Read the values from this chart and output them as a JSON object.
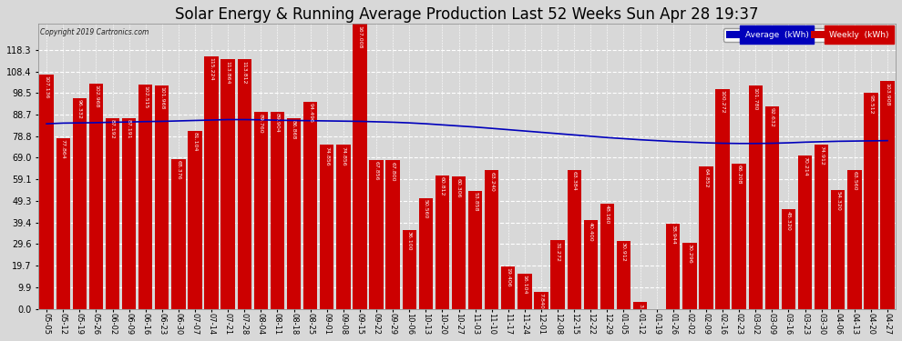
{
  "title": "Solar Energy & Running Average Production Last 52 Weeks Sun Apr 28 19:37",
  "copyright": "Copyright 2019 Cartronics.com",
  "categories": [
    "05-05",
    "05-12",
    "05-19",
    "05-26",
    "06-02",
    "06-09",
    "06-16",
    "06-23",
    "06-30",
    "07-07",
    "07-14",
    "07-21",
    "07-28",
    "08-04",
    "08-11",
    "08-18",
    "08-25",
    "09-01",
    "09-08",
    "09-15",
    "09-22",
    "09-29",
    "10-06",
    "10-13",
    "10-20",
    "10-27",
    "11-03",
    "11-10",
    "11-17",
    "11-24",
    "12-01",
    "12-08",
    "12-15",
    "12-22",
    "12-29",
    "01-05",
    "01-12",
    "01-19",
    "01-26",
    "02-02",
    "02-09",
    "02-16",
    "02-23",
    "03-02",
    "03-09",
    "03-16",
    "03-23",
    "03-30",
    "04-06",
    "04-13",
    "04-20",
    "04-27"
  ],
  "weekly_values": [
    107.136,
    77.864,
    96.332,
    102.968,
    87.192,
    87.191,
    102.515,
    101.968,
    68.376,
    81.104,
    115.224,
    113.864,
    113.812,
    89.76,
    89.904,
    86.868,
    94.496,
    74.856,
    74.856,
    167.008,
    67.856,
    67.8,
    36.1,
    50.56,
    60.812,
    60.306,
    53.858,
    63.24,
    19.406,
    16.104,
    7.84,
    31.272,
    63.384,
    40.4,
    48.16,
    30.912,
    3.012,
    0.0,
    38.944,
    30.296,
    64.852,
    100.272,
    66.208,
    101.78,
    92.632,
    45.32,
    70.214,
    74.912,
    54.32,
    63.56,
    98.512,
    103.908
  ],
  "avg_values": [
    84.5,
    84.8,
    84.9,
    85.0,
    85.2,
    85.3,
    85.5,
    85.6,
    85.8,
    86.0,
    86.2,
    86.4,
    86.4,
    86.3,
    86.1,
    86.0,
    85.9,
    85.8,
    85.7,
    85.6,
    85.4,
    85.2,
    84.9,
    84.5,
    84.0,
    83.5,
    83.0,
    82.4,
    81.8,
    81.2,
    80.6,
    80.0,
    79.4,
    78.8,
    78.2,
    77.7,
    77.2,
    76.8,
    76.4,
    76.1,
    75.8,
    75.6,
    75.5,
    75.5,
    75.6,
    75.8,
    76.1,
    76.3,
    76.5,
    76.6,
    76.7,
    76.8
  ],
  "bar_color": "#cc0000",
  "line_color": "#0000bb",
  "background_color": "#d8d8d8",
  "grid_color": "#ffffff",
  "yticks": [
    0.0,
    9.9,
    19.7,
    29.6,
    39.4,
    49.3,
    59.1,
    69.0,
    78.8,
    88.7,
    98.5,
    108.4,
    118.3
  ],
  "ymax": 130,
  "legend_avg_bg": "#0000bb",
  "legend_weekly_bg": "#cc0000",
  "title_fontsize": 12,
  "tick_fontsize": 6,
  "bar_label_fontsize": 4.5
}
